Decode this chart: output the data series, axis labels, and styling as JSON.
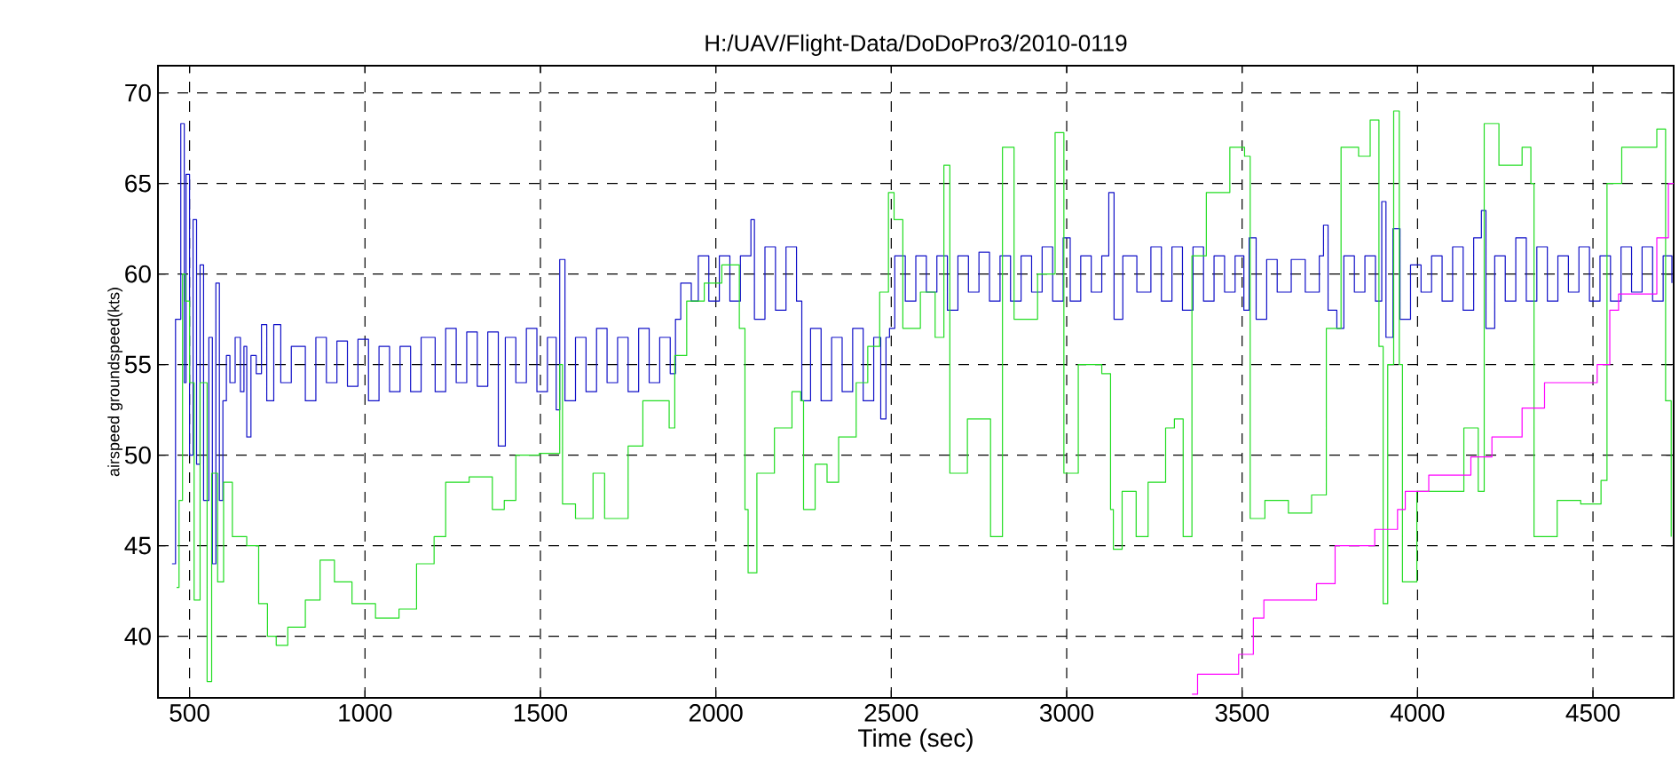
{
  "chart_data": {
    "type": "step",
    "title": "H:/UAV/Flight-Data/DoDoPro3/2010-0119",
    "xlabel": "Time    (sec)",
    "ylabel": "airspeed groundspeed(kts)",
    "xlim": [
      410,
      4730
    ],
    "ylim": [
      36.6,
      71.5
    ],
    "xticks": [
      500,
      1000,
      1500,
      2000,
      2500,
      3000,
      3500,
      4000,
      4500
    ],
    "yticks": [
      40,
      45,
      50,
      55,
      60,
      65,
      70
    ],
    "grid": true,
    "series": [
      {
        "color": "#1010c8",
        "x": [
          450,
          460,
          475,
          485,
          490,
          500,
          510,
          520,
          530,
          540,
          555,
          565,
          575,
          585,
          595,
          605,
          615,
          630,
          645,
          655,
          663,
          675,
          690,
          705,
          720,
          740,
          760,
          790,
          830,
          860,
          890,
          920,
          950,
          980,
          1010,
          1040,
          1070,
          1100,
          1130,
          1160,
          1200,
          1230,
          1260,
          1290,
          1320,
          1350,
          1380,
          1400,
          1430,
          1460,
          1490,
          1520,
          1545,
          1555,
          1570,
          1600,
          1630,
          1660,
          1690,
          1720,
          1750,
          1780,
          1810,
          1840,
          1870,
          1885,
          1900,
          1930,
          1950,
          1980,
          2010,
          2040,
          2070,
          2100,
          2110,
          2140,
          2170,
          2200,
          2230,
          2245,
          2270,
          2300,
          2330,
          2360,
          2390,
          2420,
          2450,
          2470,
          2485,
          2495,
          2510,
          2540,
          2570,
          2600,
          2630,
          2660,
          2690,
          2720,
          2750,
          2780,
          2810,
          2840,
          2870,
          2900,
          2930,
          2960,
          2990,
          3010,
          3040,
          3070,
          3100,
          3120,
          3135,
          3160,
          3200,
          3240,
          3270,
          3300,
          3330,
          3360,
          3390,
          3420,
          3450,
          3480,
          3505,
          3520,
          3540,
          3570,
          3600,
          3640,
          3680,
          3720,
          3732,
          3745,
          3770,
          3790,
          3820,
          3850,
          3880,
          3898,
          3910,
          3930,
          3950,
          3980,
          4010,
          4040,
          4070,
          4100,
          4130,
          4160,
          4182,
          4195,
          4220,
          4250,
          4280,
          4310,
          4340,
          4370,
          4400,
          4430,
          4460,
          4490,
          4520,
          4550,
          4580,
          4610,
          4640,
          4670,
          4700,
          4725
        ],
        "values": [
          44,
          57.5,
          68.3,
          54,
          65.5,
          50,
          63,
          49.5,
          60.5,
          47.5,
          56.5,
          44,
          59.5,
          47.5,
          53,
          55.5,
          54,
          56.5,
          53.5,
          56,
          51,
          55.5,
          54.5,
          57.2,
          53,
          57.2,
          54,
          56,
          53,
          56.5,
          54,
          56.3,
          53.8,
          56.4,
          53,
          56,
          53.5,
          56,
          53.5,
          56.5,
          53.5,
          57,
          54,
          56.8,
          53.8,
          56.8,
          50.5,
          56.5,
          54,
          57,
          53.5,
          56.5,
          52.5,
          60.8,
          53,
          56.5,
          53.5,
          57,
          54,
          56.5,
          53.5,
          57,
          54,
          56.5,
          54.5,
          57.5,
          59.5,
          58.5,
          61,
          58.5,
          61,
          58.5,
          61,
          63,
          57.5,
          61.5,
          58,
          61.5,
          58.5,
          53,
          57,
          53,
          56.5,
          53.5,
          57,
          53,
          56.5,
          52,
          56.5,
          57,
          61,
          58.5,
          61,
          59,
          61,
          58,
          61,
          59,
          61.2,
          58.5,
          61,
          58.5,
          61,
          59,
          61.5,
          58.5,
          62,
          58.5,
          61,
          59,
          61,
          64.5,
          57.5,
          61,
          59,
          61.5,
          58.5,
          61.5,
          58,
          61.5,
          58.5,
          61,
          59,
          61,
          58,
          62,
          57.5,
          60.8,
          59,
          60.8,
          59,
          61,
          62.7,
          58,
          57,
          61,
          59,
          61,
          58.5,
          64,
          56.5,
          62.5,
          57.5,
          60.5,
          59,
          61,
          58.5,
          61.5,
          58,
          62,
          63.5,
          57,
          61,
          58.5,
          62,
          58.5,
          61.5,
          58.5,
          61,
          59,
          61.5,
          58.5,
          61,
          58.5,
          61.5,
          59,
          61.5,
          58.5,
          61,
          59.5
        ]
      },
      {
        "color": "#22dd22",
        "x": [
          463,
          470,
          480,
          488,
          493,
          500,
          513,
          530,
          550,
          563,
          580,
          597,
          622,
          663,
          697,
          722,
          747,
          780,
          830,
          872,
          913,
          963,
          1030,
          1097,
          1147,
          1197,
          1230,
          1297,
          1363,
          1397,
          1430,
          1497,
          1555,
          1563,
          1600,
          1650,
          1683,
          1750,
          1792,
          1867,
          1883,
          1917,
          1967,
          2017,
          2067,
          2083,
          2092,
          2117,
          2167,
          2217,
          2242,
          2250,
          2283,
          2317,
          2350,
          2400,
          2433,
          2467,
          2492,
          2500,
          2508,
          2533,
          2583,
          2625,
          2650,
          2667,
          2717,
          2783,
          2817,
          2850,
          2917,
          2967,
          2992,
          3033,
          3100,
          3125,
          3133,
          3158,
          3198,
          3232,
          3282,
          3307,
          3332,
          3357,
          3398,
          3465,
          3507,
          3523,
          3565,
          3632,
          3698,
          3740,
          3762,
          3782,
          3832,
          3865,
          3890,
          3902,
          3915,
          3932,
          3948,
          3957,
          3998,
          4065,
          4132,
          4173,
          4190,
          4232,
          4298,
          4323,
          4332,
          4398,
          4465,
          4523,
          4540,
          4582,
          4632,
          4682,
          4707,
          4723
        ],
        "values": [
          42.7,
          47.5,
          60,
          58.5,
          null,
          54,
          42,
          54,
          37.5,
          49,
          43,
          48.5,
          45.5,
          45,
          41.8,
          40,
          39.5,
          40.5,
          42,
          44.2,
          43,
          41.8,
          41,
          41.5,
          44,
          45.5,
          48.5,
          48.8,
          47,
          47.5,
          50,
          50.1,
          55,
          47.3,
          46.5,
          49,
          46.5,
          50.5,
          53,
          51.5,
          55.5,
          58.5,
          59.5,
          60.5,
          57,
          47,
          43.5,
          49,
          51.5,
          53.5,
          53,
          47,
          49.5,
          48.5,
          51,
          54,
          56,
          59,
          64.5,
          null,
          63,
          57,
          59,
          56.5,
          66,
          49,
          52,
          45.5,
          67,
          57.5,
          60,
          67.8,
          49,
          55,
          54.5,
          47,
          44.8,
          48,
          45.5,
          48.5,
          51.5,
          52,
          45.5,
          61,
          64.5,
          67,
          66.5,
          46.5,
          47.5,
          46.8,
          47.8,
          57,
          null,
          67,
          66.5,
          68.5,
          56,
          41.8,
          55,
          69,
          55,
          43,
          48,
          48,
          51.5,
          48,
          68.3,
          66,
          67,
          65,
          45.5,
          47.5,
          47.3,
          48.6,
          65,
          67,
          67,
          68,
          53,
          45.5
        ]
      },
      {
        "color": "#ff00ff",
        "x": [
          3357,
          3373,
          3490,
          3532,
          3562,
          3712,
          3765,
          3878,
          3943,
          3965,
          4032,
          4152,
          4212,
          4298,
          4362,
          4512,
          4548,
          4573,
          4682,
          4715,
          4730
        ],
        "values": [
          36.8,
          37.9,
          39.0,
          41.0,
          42.0,
          42.9,
          45.0,
          45.9,
          47.0,
          48.0,
          48.9,
          49.9,
          51.0,
          52.6,
          54.0,
          55.0,
          58.0,
          58.9,
          62.0,
          65.0,
          65.0
        ]
      }
    ]
  }
}
